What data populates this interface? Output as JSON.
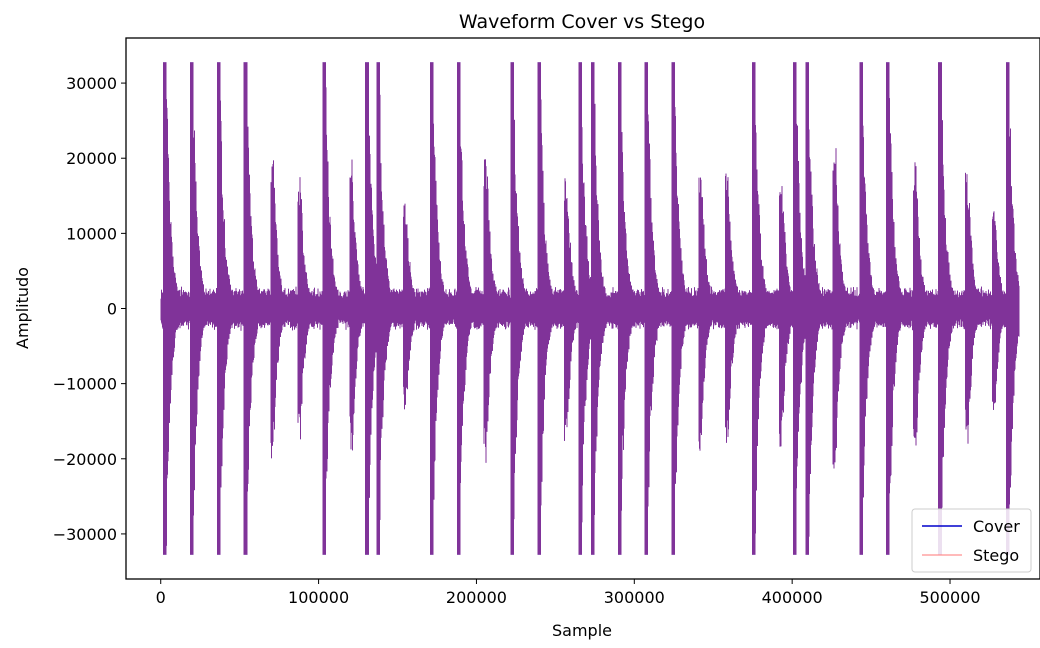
{
  "chart_data": {
    "type": "line",
    "title": "Waveform Cover vs Stego",
    "xlabel": "Sample",
    "ylabel": "Amplitudo",
    "xlim": [
      -22000,
      557000
    ],
    "ylim": [
      -36000,
      36000
    ],
    "xticks": [
      0,
      100000,
      200000,
      300000,
      400000,
      500000
    ],
    "xtick_labels": [
      "0",
      "100000",
      "200000",
      "300000",
      "400000",
      "500000"
    ],
    "yticks": [
      -30000,
      -20000,
      -10000,
      0,
      10000,
      20000,
      30000
    ],
    "ytick_labels": [
      "−30000",
      "−20000",
      "−10000",
      "0",
      "10000",
      "20000",
      "30000"
    ],
    "grid": false,
    "legend_position": "bottom-right",
    "series": [
      {
        "name": "Cover",
        "color": "#0000cc",
        "x_range": [
          0,
          544000
        ],
        "bursts": [
          {
            "x": 2000,
            "peak": 32767
          },
          {
            "x": 19000,
            "peak": 32767
          },
          {
            "x": 36000,
            "peak": 32767
          },
          {
            "x": 53000,
            "peak": 32767
          },
          {
            "x": 70000,
            "peak": 20000
          },
          {
            "x": 87000,
            "peak": 18000
          },
          {
            "x": 103000,
            "peak": 32767
          },
          {
            "x": 120000,
            "peak": 20000
          },
          {
            "x": 130000,
            "peak": 32767
          },
          {
            "x": 137000,
            "peak": 32767
          },
          {
            "x": 154000,
            "peak": 14000
          },
          {
            "x": 171000,
            "peak": 32767
          },
          {
            "x": 188000,
            "peak": 32767
          },
          {
            "x": 205000,
            "peak": 21000
          },
          {
            "x": 222000,
            "peak": 32767
          },
          {
            "x": 239000,
            "peak": 32767
          },
          {
            "x": 256000,
            "peak": 18000
          },
          {
            "x": 265000,
            "peak": 32767
          },
          {
            "x": 273000,
            "peak": 32767
          },
          {
            "x": 290000,
            "peak": 32767
          },
          {
            "x": 307000,
            "peak": 32767
          },
          {
            "x": 324000,
            "peak": 32767
          },
          {
            "x": 341000,
            "peak": 20000
          },
          {
            "x": 358000,
            "peak": 19000
          },
          {
            "x": 375000,
            "peak": 32767
          },
          {
            "x": 392000,
            "peak": 20000
          },
          {
            "x": 401000,
            "peak": 32767
          },
          {
            "x": 409000,
            "peak": 32767
          },
          {
            "x": 426000,
            "peak": 23000
          },
          {
            "x": 443000,
            "peak": 32767
          },
          {
            "x": 460000,
            "peak": 32767
          },
          {
            "x": 477000,
            "peak": 20000
          },
          {
            "x": 493000,
            "peak": 32767
          },
          {
            "x": 510000,
            "peak": 19000
          },
          {
            "x": 527000,
            "peak": 14000
          },
          {
            "x": 536000,
            "peak": 32767
          },
          {
            "x": 544000,
            "peak": 12500
          }
        ]
      },
      {
        "name": "Stego",
        "color": "#ff6666",
        "x_range": [
          0,
          544000
        ],
        "bursts": "identical to Cover"
      }
    ]
  }
}
